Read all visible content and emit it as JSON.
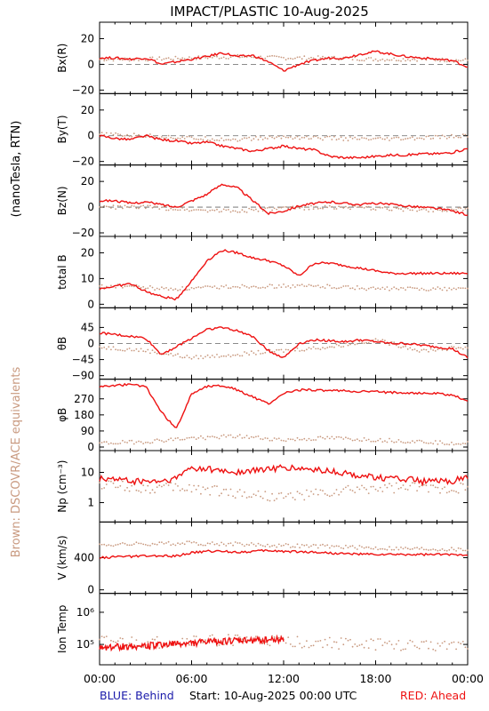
{
  "title": "IMPACT/PLASTIC   10-Aug-2025",
  "left_labels": {
    "units": "(nanoTesla, RTN)",
    "brown_note": "Brown: DSCOVR/ACE equivalents"
  },
  "footer": {
    "blue": "BLUE: Behind",
    "start": "Start: 10-Aug-2025 00:00 UTC",
    "red": "RED: Ahead"
  },
  "colors": {
    "ahead": "#ee1111",
    "ace": "#c99a80",
    "behind": "#1a1aaa",
    "axes": "#000000"
  },
  "x_ticks": [
    "00:00",
    "06:00",
    "12:00",
    "18:00",
    "00:00"
  ],
  "chart_data": [
    {
      "type": "line",
      "ylabel": "Bx(R)",
      "ylim": [
        -20,
        30
      ],
      "yticks": [
        "20",
        "0",
        "−20"
      ],
      "yticks_values": [
        20,
        0,
        -20
      ],
      "zero_line": true,
      "series": [
        {
          "name": "Ahead",
          "color": "ahead",
          "x": [
            0,
            1,
            2,
            3,
            3.5,
            4,
            5,
            6,
            7,
            8,
            9,
            10,
            11,
            12,
            13,
            14,
            15,
            16,
            17,
            18,
            19,
            20,
            21,
            22,
            23,
            24
          ],
          "values": [
            5,
            5,
            4,
            5,
            3,
            0,
            2,
            4,
            6,
            9,
            6,
            7,
            2,
            -5,
            0,
            3,
            5,
            5,
            8,
            10,
            8,
            6,
            5,
            4,
            3,
            -2
          ]
        },
        {
          "name": "DSCOVR/ACE",
          "color": "ace",
          "x": [
            0,
            3,
            6,
            9,
            12,
            15,
            18,
            21,
            24
          ],
          "values": [
            4,
            4,
            5,
            6,
            5,
            5,
            4,
            4,
            3
          ]
        }
      ]
    },
    {
      "type": "line",
      "ylabel": "By(T)",
      "ylim": [
        -20,
        30
      ],
      "yticks": [
        "20",
        "0",
        "−20"
      ],
      "yticks_values": [
        20,
        0,
        -20
      ],
      "zero_line": true,
      "series": [
        {
          "name": "Ahead",
          "color": "ahead",
          "x": [
            0,
            1,
            2,
            3,
            4,
            5,
            6,
            7,
            8,
            9,
            10,
            11,
            12,
            13,
            14,
            15,
            16,
            17,
            18,
            19,
            20,
            21,
            22,
            23,
            24
          ],
          "values": [
            0,
            -2,
            -3,
            0,
            -3,
            -4,
            -6,
            -5,
            -8,
            -10,
            -12,
            -10,
            -8,
            -10,
            -11,
            -16,
            -17,
            -17,
            -16,
            -15,
            -15,
            -14,
            -14,
            -13,
            -10
          ]
        },
        {
          "name": "DSCOVR/ACE",
          "color": "ace",
          "x": [
            0,
            3,
            6,
            9,
            12,
            15,
            18,
            21,
            24
          ],
          "values": [
            1,
            0,
            -2,
            -3,
            -1,
            -2,
            -3,
            -2,
            0
          ]
        }
      ]
    },
    {
      "type": "line",
      "ylabel": "Bz(N)",
      "ylim": [
        -20,
        30
      ],
      "yticks": [
        "20",
        "0",
        "−20"
      ],
      "yticks_values": [
        20,
        0,
        -20
      ],
      "zero_line": true,
      "series": [
        {
          "name": "Ahead",
          "color": "ahead",
          "x": [
            0,
            1,
            2,
            3,
            4,
            5,
            6,
            7,
            8,
            9,
            10,
            11,
            12,
            13,
            14,
            15,
            16,
            17,
            18,
            19,
            20,
            21,
            22,
            23,
            24
          ],
          "values": [
            5,
            5,
            3,
            4,
            2,
            0,
            5,
            10,
            18,
            15,
            5,
            -5,
            -3,
            1,
            3,
            4,
            3,
            2,
            3,
            2,
            1,
            0,
            -1,
            -3,
            -6
          ]
        },
        {
          "name": "DSCOVR/ACE",
          "color": "ace",
          "x": [
            0,
            3,
            6,
            9,
            12,
            15,
            18,
            21,
            24
          ],
          "values": [
            0,
            0,
            -2,
            -3,
            -1,
            0,
            -1,
            -2,
            -2
          ]
        }
      ]
    },
    {
      "type": "line",
      "ylabel": "total B",
      "ylim": [
        0,
        25
      ],
      "yticks": [
        "20",
        "10",
        "0"
      ],
      "yticks_values": [
        20,
        10,
        0
      ],
      "zero_line": false,
      "series": [
        {
          "name": "Ahead",
          "color": "ahead",
          "x": [
            0,
            1,
            2,
            3,
            4,
            5,
            6,
            7,
            8,
            9,
            10,
            11,
            12,
            13,
            14,
            15,
            16,
            17,
            18,
            19,
            20,
            21,
            22,
            23,
            24
          ],
          "values": [
            6,
            7,
            8,
            5,
            3,
            2,
            9,
            17,
            21,
            20,
            18,
            17,
            15,
            11,
            16,
            16,
            15,
            14,
            13,
            12,
            12,
            12,
            12,
            12,
            12
          ]
        },
        {
          "name": "DSCOVR/ACE",
          "color": "ace",
          "x": [
            0,
            2,
            4,
            6,
            9,
            12,
            15,
            18,
            21,
            24
          ],
          "values": [
            7,
            7,
            6,
            6,
            7,
            7,
            7,
            6,
            6,
            6
          ]
        }
      ]
    },
    {
      "type": "line",
      "ylabel": "θB",
      "ylim": [
        -90,
        90
      ],
      "yticks": [
        "45",
        "0",
        "−45",
        "−90"
      ],
      "yticks_values": [
        45,
        0,
        -45,
        -90
      ],
      "zero_line": true,
      "series": [
        {
          "name": "Ahead",
          "color": "ahead",
          "x": [
            0,
            1,
            2,
            3,
            4,
            5,
            6,
            7,
            8,
            9,
            10,
            11,
            12,
            13,
            14,
            15,
            16,
            17,
            18,
            19,
            20,
            21,
            22,
            23,
            24
          ],
          "values": [
            30,
            25,
            20,
            15,
            -30,
            -10,
            15,
            40,
            45,
            35,
            20,
            -20,
            -40,
            0,
            10,
            8,
            5,
            10,
            5,
            0,
            0,
            -5,
            -10,
            -15,
            -40
          ]
        },
        {
          "name": "DSCOVR/ACE",
          "color": "ace",
          "x": [
            0,
            3,
            6,
            9,
            12,
            15,
            18,
            21,
            24
          ],
          "values": [
            -10,
            -20,
            -40,
            -30,
            -20,
            -10,
            10,
            -20,
            -10
          ]
        }
      ]
    },
    {
      "type": "line",
      "ylabel": "φB",
      "ylim": [
        0,
        360
      ],
      "yticks": [
        "270",
        "180",
        "90",
        "0"
      ],
      "yticks_values": [
        270,
        180,
        90,
        0
      ],
      "zero_line": false,
      "series": [
        {
          "name": "Ahead",
          "color": "ahead",
          "x": [
            0,
            1,
            2,
            3,
            4,
            5,
            6,
            7,
            8,
            9,
            10,
            11,
            12,
            13,
            14,
            15,
            16,
            17,
            18,
            19,
            20,
            21,
            22,
            23,
            24
          ],
          "values": [
            340,
            345,
            350,
            340,
            200,
            100,
            300,
            340,
            345,
            320,
            280,
            240,
            300,
            320,
            320,
            315,
            315,
            310,
            310,
            305,
            305,
            300,
            300,
            290,
            260
          ]
        },
        {
          "name": "DSCOVR/ACE",
          "color": "ace",
          "x": [
            0,
            3,
            6,
            9,
            12,
            15,
            18,
            21,
            24
          ],
          "values": [
            20,
            30,
            50,
            60,
            40,
            50,
            40,
            30,
            20
          ]
        }
      ]
    },
    {
      "type": "line",
      "ylabel": "Np (cm⁻³)",
      "ylim": [
        0.3,
        40
      ],
      "log_scale": true,
      "yticks": [
        "10",
        "1"
      ],
      "yticks_values": [
        10,
        1
      ],
      "zero_line": false,
      "series": [
        {
          "name": "Ahead",
          "color": "ahead",
          "x": [
            0,
            1,
            2,
            3,
            4,
            5,
            6,
            7,
            8,
            9,
            10,
            11,
            12,
            13,
            14,
            15,
            16,
            17,
            18,
            19,
            20,
            21,
            22,
            23,
            24
          ],
          "values": [
            6,
            6,
            5,
            5,
            5,
            6,
            14,
            13,
            11,
            10,
            11,
            13,
            14,
            13,
            12,
            11,
            9,
            8,
            7,
            6,
            6,
            5,
            5,
            5,
            7
          ]
        },
        {
          "name": "DSCOVR/ACE",
          "color": "ace",
          "x": [
            0,
            3,
            6,
            9,
            12,
            15,
            18,
            21,
            24
          ],
          "values": [
            4,
            3,
            3,
            2,
            1.5,
            2,
            3,
            3,
            3
          ]
        }
      ]
    },
    {
      "type": "line",
      "ylabel": "V (km/s)",
      "ylim": [
        0,
        800
      ],
      "yticks": [
        "400",
        "0"
      ],
      "yticks_values": [
        400,
        0
      ],
      "zero_line": false,
      "series": [
        {
          "name": "Ahead",
          "color": "ahead",
          "x": [
            0,
            1,
            2,
            3,
            4,
            5,
            6,
            7,
            8,
            9,
            10,
            11,
            12,
            13,
            14,
            15,
            16,
            17,
            18,
            19,
            20,
            21,
            22,
            23,
            24
          ],
          "values": [
            400,
            410,
            415,
            420,
            420,
            420,
            460,
            480,
            480,
            470,
            480,
            490,
            480,
            475,
            470,
            460,
            450,
            445,
            440,
            440,
            440,
            440,
            440,
            440,
            440
          ]
        },
        {
          "name": "DSCOVR/ACE",
          "color": "ace",
          "x": [
            0,
            3,
            6,
            9,
            12,
            15,
            18,
            21,
            24
          ],
          "values": [
            560,
            570,
            580,
            570,
            550,
            540,
            520,
            510,
            500
          ]
        }
      ]
    },
    {
      "type": "line",
      "ylabel": "Ion Temp",
      "ylim": [
        30000,
        3000000
      ],
      "log_scale": true,
      "yticks": [
        "10⁶",
        "10⁵"
      ],
      "yticks_values": [
        1000000,
        100000
      ],
      "zero_line": false,
      "series": [
        {
          "name": "Ahead",
          "color": "ahead",
          "x": [
            0,
            3,
            6,
            7,
            8,
            9,
            10,
            11,
            12
          ],
          "values": [
            80000,
            90000,
            110000,
            120000,
            125000,
            130000,
            135000,
            140000,
            145000
          ]
        },
        {
          "name": "DSCOVR/ACE",
          "color": "ace",
          "x": [
            0,
            3,
            6,
            9,
            12,
            15,
            18,
            21,
            24
          ],
          "values": [
            120000,
            110000,
            130000,
            140000,
            120000,
            110000,
            100000,
            90000,
            110000
          ]
        }
      ]
    }
  ]
}
